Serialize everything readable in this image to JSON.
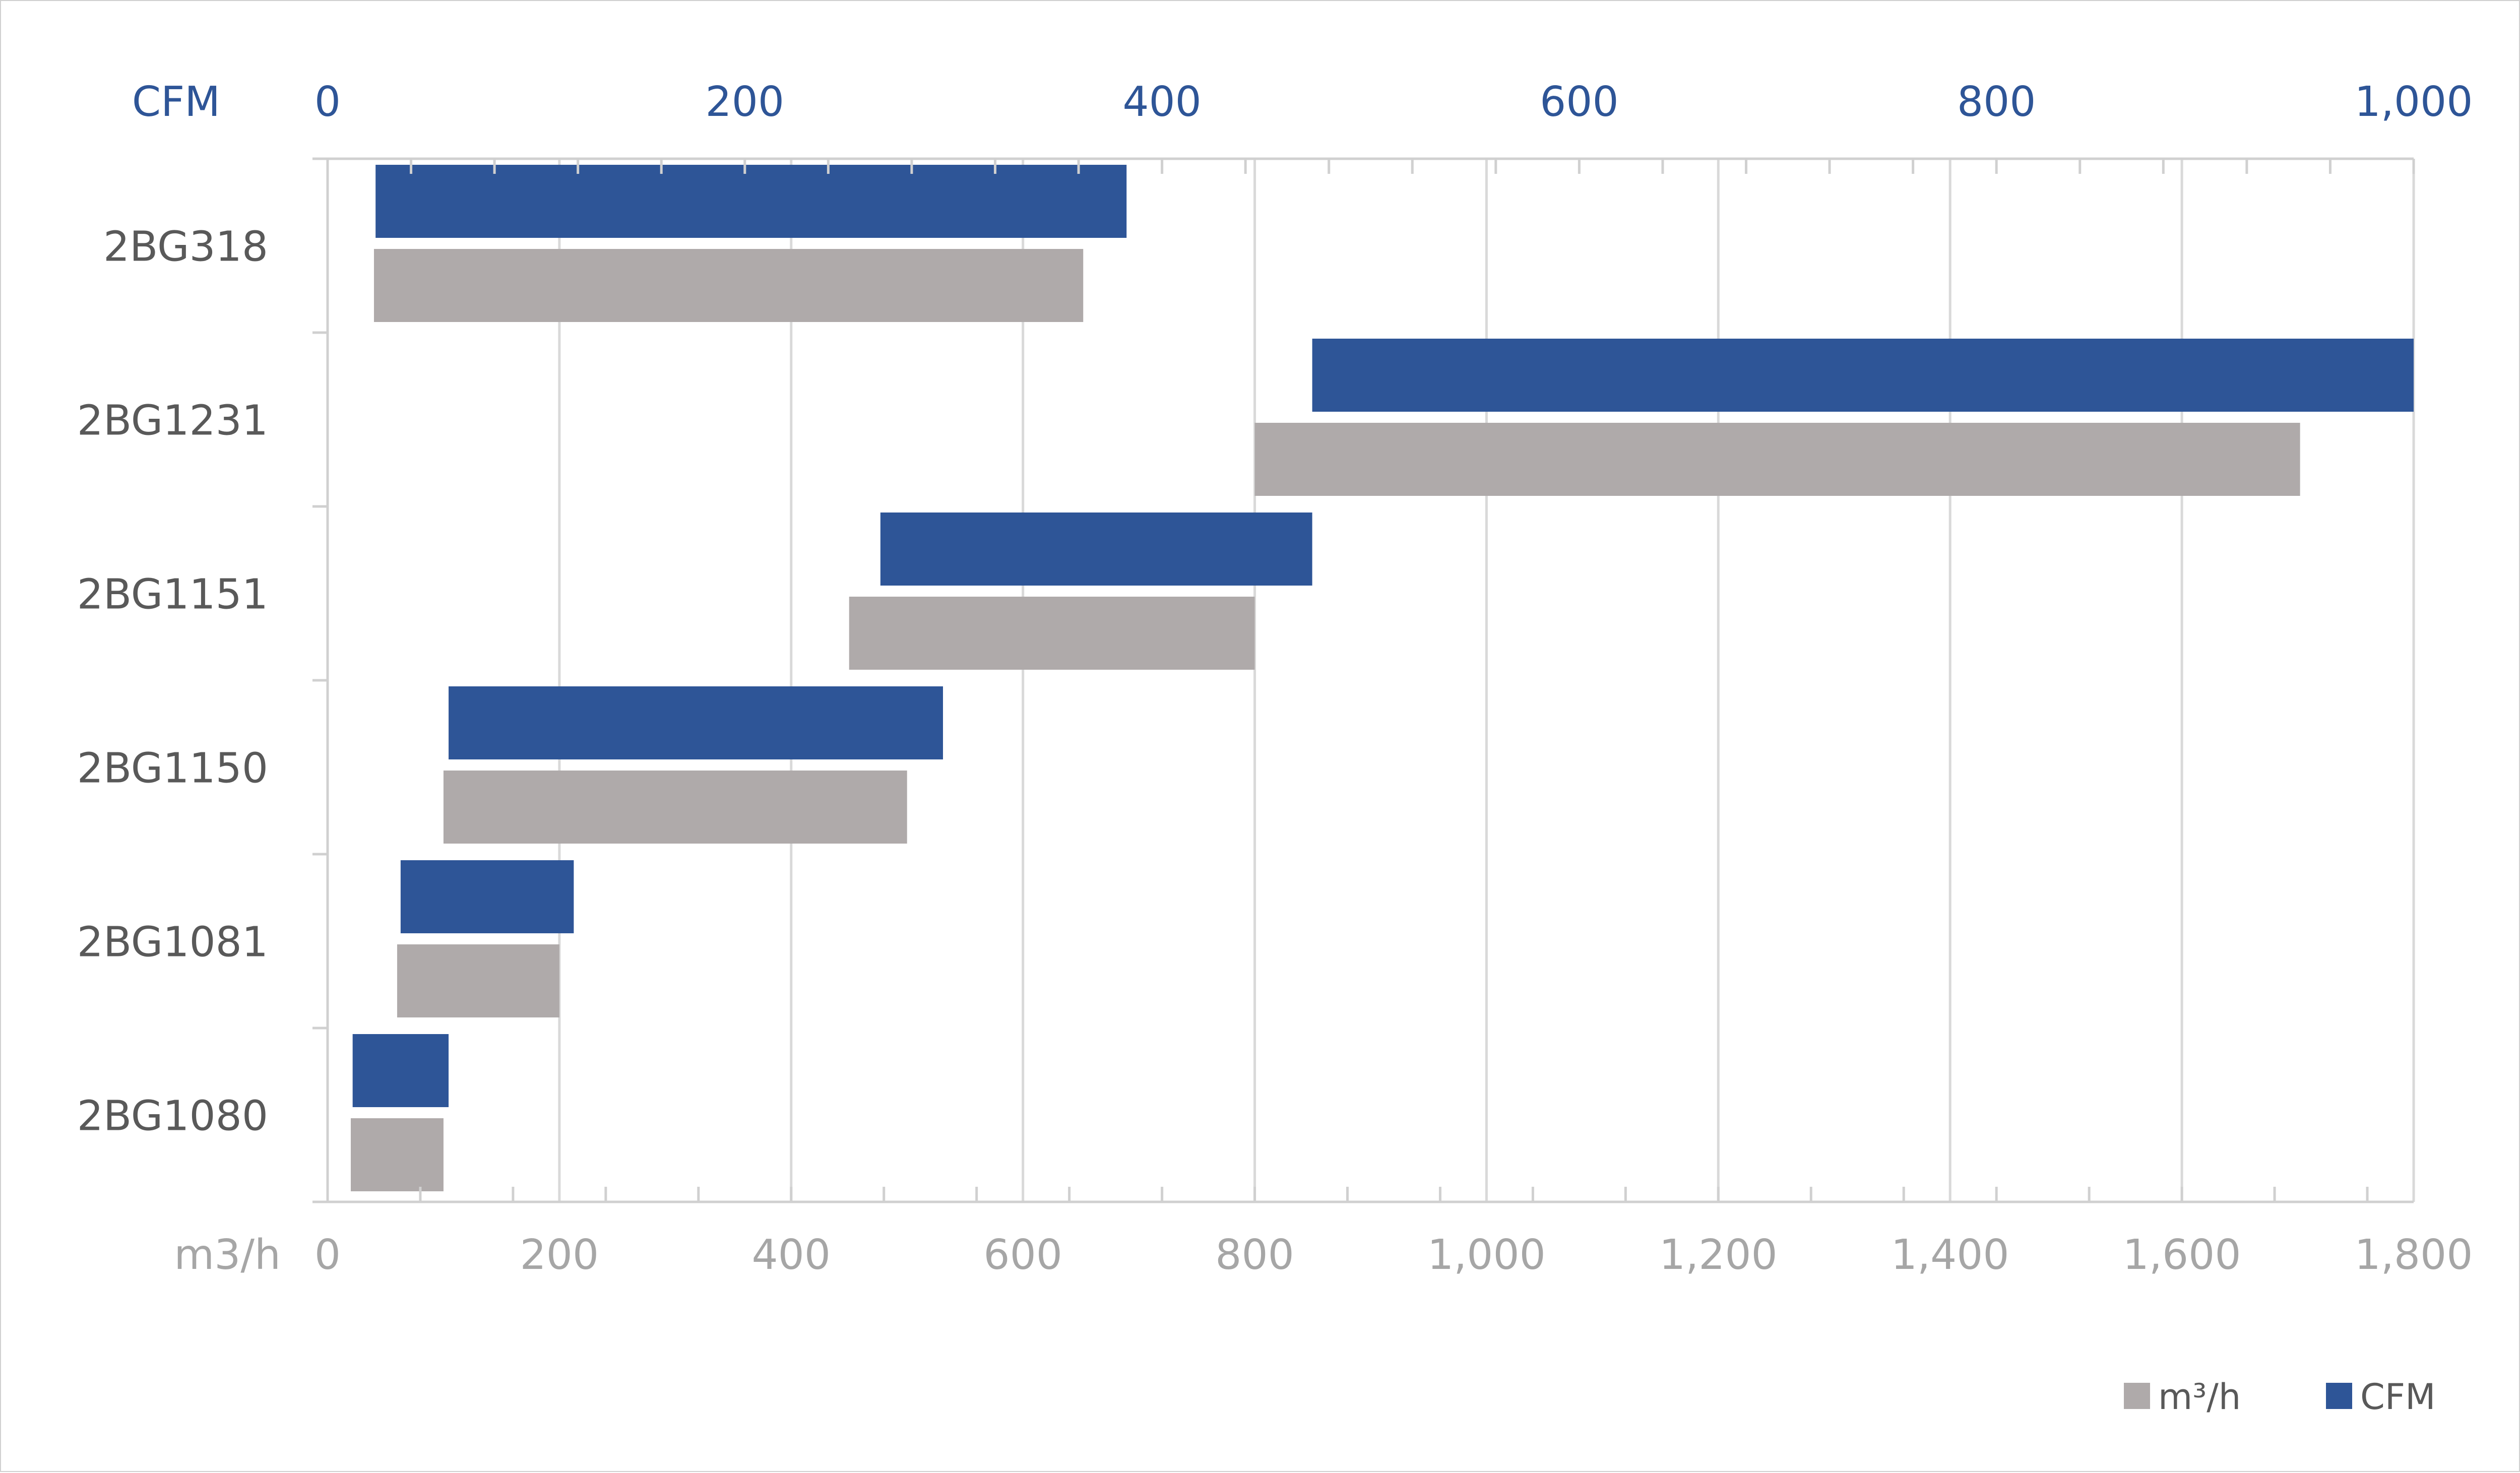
{
  "chart_data": {
    "type": "bar",
    "orientation": "horizontal",
    "range_bars": true,
    "categories": [
      "2BG318",
      "2BG1231",
      "2BG1151",
      "2BG1150",
      "2BG1081",
      "2BG1080"
    ],
    "top_axis": {
      "label": "CFM",
      "range": [
        0,
        1000
      ],
      "ticks": [
        0,
        200,
        400,
        600,
        800,
        1000
      ],
      "tick_labels": [
        "0",
        "200",
        "400",
        "600",
        "800",
        "1,000"
      ]
    },
    "bottom_axis": {
      "label": "m3/h",
      "range": [
        0,
        1800
      ],
      "ticks": [
        0,
        200,
        400,
        600,
        800,
        1000,
        1200,
        1400,
        1600,
        1800
      ],
      "tick_labels": [
        "0",
        "200",
        "400",
        "600",
        "800",
        "1,000",
        "1,200",
        "1,400",
        "1,600",
        "1,800"
      ]
    },
    "series": [
      {
        "name": "CFM",
        "color": "#2e5597",
        "axis": "top",
        "ranges": [
          [
            23,
            383
          ],
          [
            472,
            1001
          ],
          [
            265,
            472
          ],
          [
            58,
            295
          ],
          [
            35,
            118
          ],
          [
            12,
            58
          ]
        ]
      },
      {
        "name": "m³/h",
        "color": "#afaaaa",
        "axis": "bottom",
        "ranges": [
          [
            40,
            652
          ],
          [
            800,
            1702
          ],
          [
            450,
            800
          ],
          [
            100,
            500
          ],
          [
            60,
            200
          ],
          [
            20,
            100
          ]
        ]
      }
    ],
    "legend": {
      "position": "bottom-right",
      "items": [
        {
          "label": "m³/h",
          "color": "#afaaaa"
        },
        {
          "label": "CFM",
          "color": "#2e5597"
        }
      ]
    },
    "grid": true
  }
}
